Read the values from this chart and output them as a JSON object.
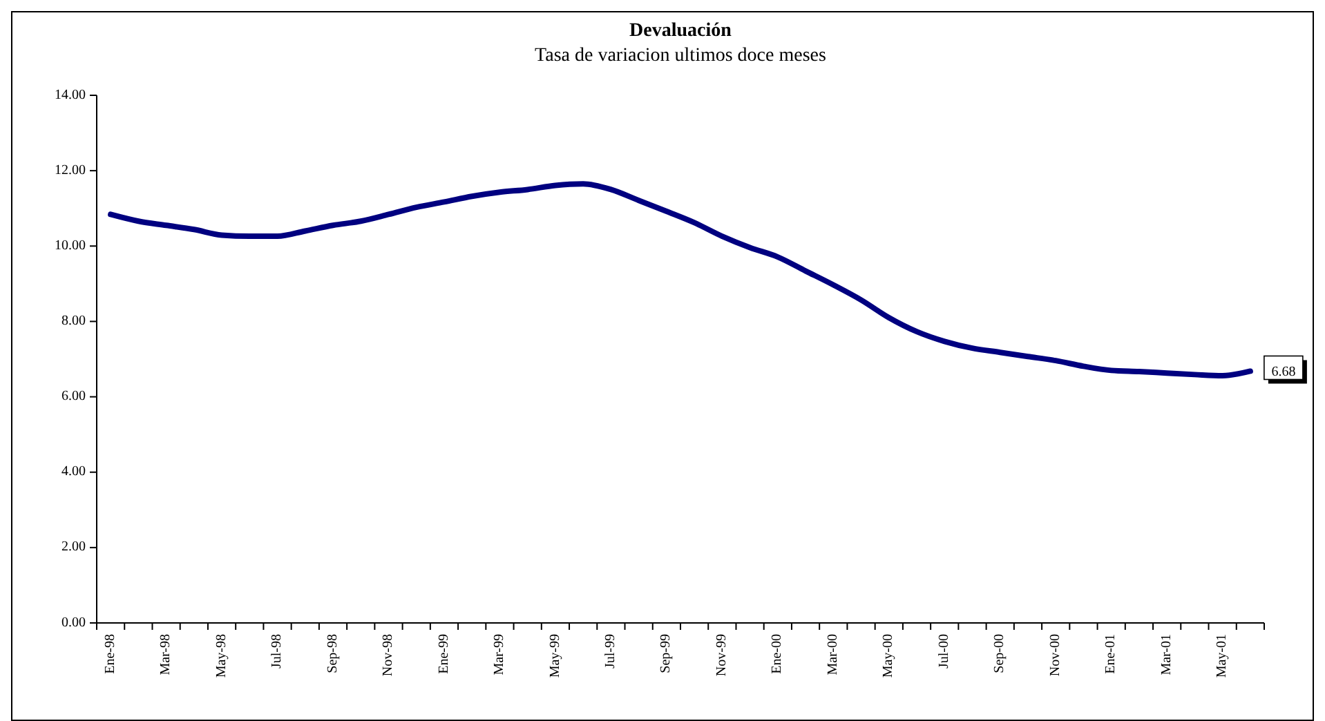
{
  "chart_data": {
    "type": "line",
    "title": "Devaluación",
    "subtitle": "Tasa de variacion ultimos doce meses",
    "categories": [
      "Ene-98",
      null,
      "Mar-98",
      null,
      "May-98",
      null,
      "Jul-98",
      null,
      "Sep-98",
      null,
      "Nov-98",
      null,
      "Ene-99",
      null,
      "Mar-99",
      null,
      "May-99",
      null,
      "Jul-99",
      null,
      "Sep-99",
      null,
      "Nov-99",
      null,
      "Ene-00",
      null,
      "Mar-00",
      null,
      "May-00",
      null,
      "Jul-00",
      null,
      "Sep-00",
      null,
      "Nov-00",
      null,
      "Ene-01",
      null,
      "Mar-01",
      null,
      "May-01",
      null
    ],
    "series": [
      {
        "color": "#000080",
        "values": [
          10.84,
          10.66,
          10.55,
          10.44,
          10.29,
          10.26,
          10.26,
          10.4,
          10.55,
          10.66,
          10.84,
          11.03,
          11.17,
          11.32,
          11.43,
          11.5,
          11.61,
          11.65,
          11.5,
          11.21,
          10.92,
          10.62,
          10.26,
          9.96,
          9.71,
          9.34,
          8.97,
          8.57,
          8.1,
          7.73,
          7.47,
          7.29,
          7.18,
          7.07,
          6.96,
          6.81,
          6.7,
          6.67,
          6.63,
          6.59,
          6.56,
          6.68
        ],
        "value_labels": [
          null,
          null,
          null,
          null,
          null,
          null,
          null,
          null,
          null,
          null,
          null,
          null,
          null,
          null,
          null,
          null,
          null,
          null,
          null,
          null,
          null,
          null,
          null,
          null,
          null,
          null,
          null,
          null,
          null,
          null,
          null,
          null,
          null,
          null,
          null,
          null,
          null,
          null,
          null,
          null,
          null,
          "6.68"
        ]
      }
    ],
    "ylim": [
      0,
      14
    ],
    "yticks": [
      {
        "value": 0,
        "label": "0.00"
      },
      {
        "value": 2,
        "label": "2.00"
      },
      {
        "value": 4,
        "label": "4.00"
      },
      {
        "value": 6,
        "label": "6.00"
      },
      {
        "value": 8,
        "label": "8.00"
      },
      {
        "value": 10,
        "label": "10.00"
      },
      {
        "value": 12,
        "label": "12.00"
      },
      {
        "value": 14,
        "label": "14.00"
      }
    ],
    "grid": false,
    "marker": "none",
    "line_style": "solid"
  }
}
